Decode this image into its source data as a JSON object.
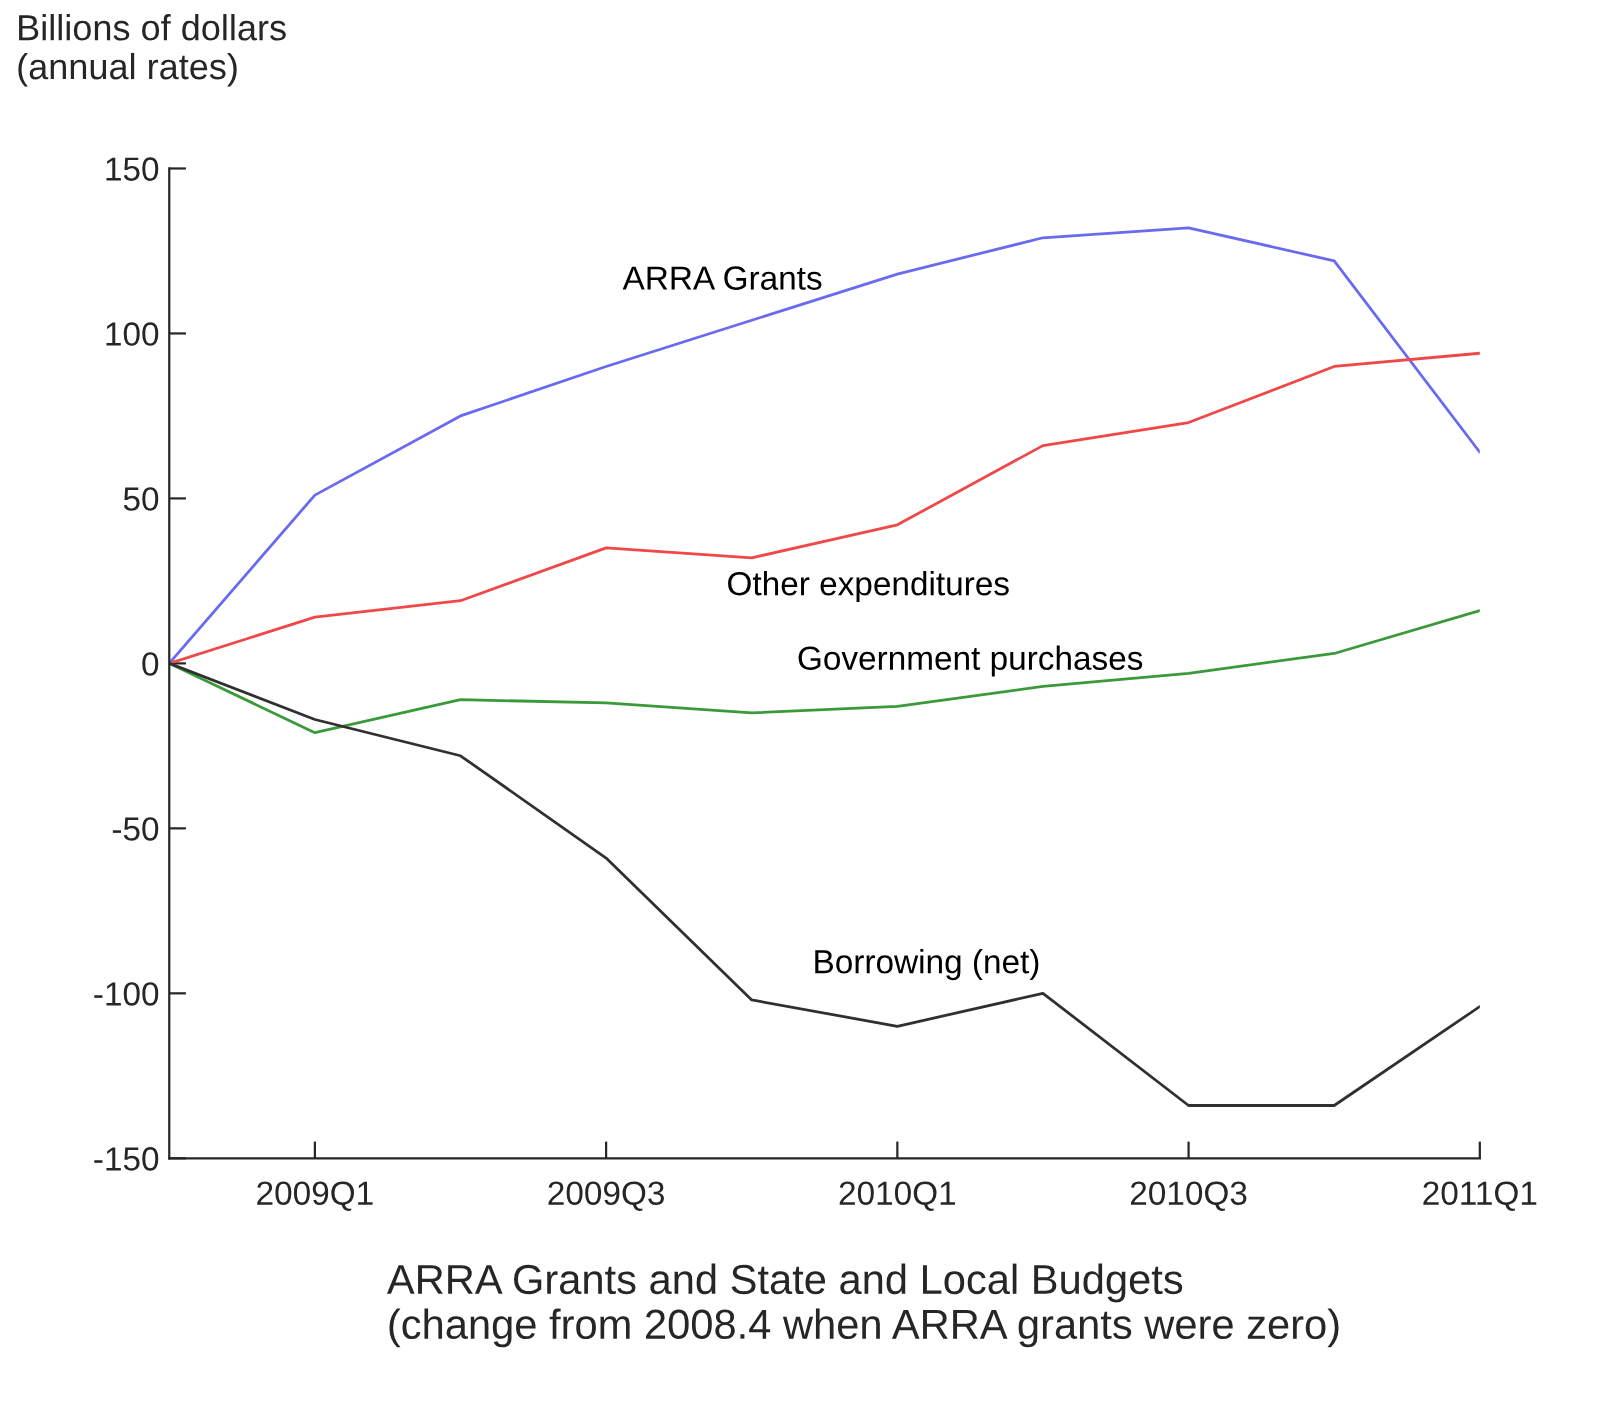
{
  "chart_data": {
    "type": "line",
    "title": "ARRA Grants and State and Local Budgets\n(change from 2008.4 when ARRA grants were zero)",
    "ylabel": "Billions of dollars\n(annual rates)",
    "categories": [
      null,
      "2009Q1",
      null,
      "2009Q3",
      null,
      "2010Q1",
      null,
      "2010Q3",
      null,
      "2011Q1"
    ],
    "series": [
      {
        "name": "ARRA Grants",
        "color": "#6a6af0",
        "values": [
          0,
          51,
          75,
          90,
          104,
          118,
          129,
          132,
          122,
          64
        ]
      },
      {
        "name": "Other expenditures",
        "color": "#f04848",
        "values": [
          0,
          14,
          19,
          35,
          32,
          42,
          66,
          73,
          90,
          94
        ]
      },
      {
        "name": "Government purchases",
        "color": "#3a9a3a",
        "values": [
          0,
          -21,
          -11,
          -12,
          -15,
          -13,
          -7,
          -3,
          3,
          16
        ]
      },
      {
        "name": "Borrowing (net)",
        "color": "#303030",
        "values": [
          0,
          -17,
          -28,
          -59,
          -102,
          -110,
          -100,
          -134,
          -134,
          -104
        ]
      }
    ],
    "ylim": [
      -150,
      150
    ],
    "yticks": [
      -150,
      -100,
      -50,
      0,
      50,
      100,
      150
    ],
    "grid": false,
    "legend": false,
    "marker": "none",
    "line_style": "solid"
  }
}
